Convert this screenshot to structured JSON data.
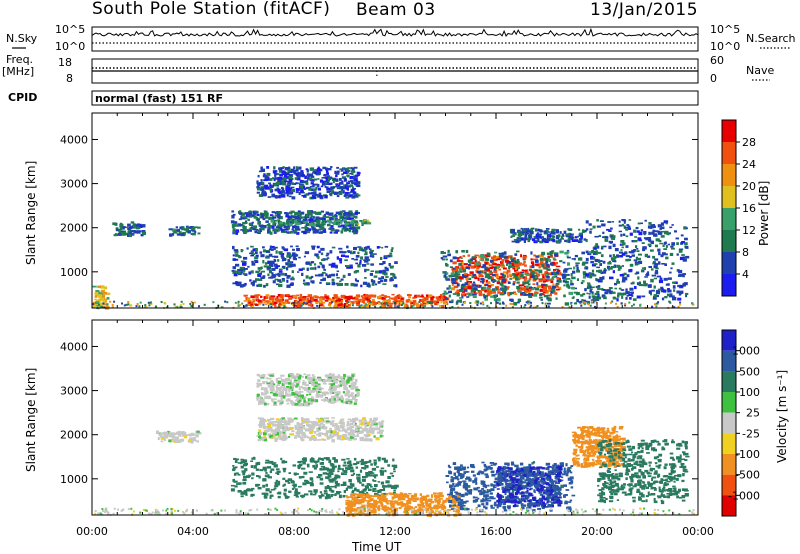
{
  "header": {
    "station": "South Pole Station (fitACF)",
    "beam": "Beam 03",
    "date": "13/Jan/2015"
  },
  "top_panels": {
    "nsky_label": "N.Sky",
    "nsky_ticks": [
      "10^5",
      "10^0"
    ],
    "nsearch_label": "N.Search",
    "nsearch_ticks": [
      "10^5",
      "10^0"
    ],
    "freq_label": "Freq.",
    "freq_unit": "[MHz]",
    "freq_ticks": [
      "18",
      "8"
    ],
    "nave_label": "Nave",
    "nave_ticks": [
      "60",
      "0"
    ],
    "cpid_label": "CPID",
    "cpid_value": "normal (fast) 151 RF"
  },
  "colors": {
    "power": [
      "#1c1cf0",
      "#2040b0",
      "#207a50",
      "#3aa06a",
      "#e0c020",
      "#f09010",
      "#f05010",
      "#e80000"
    ],
    "velocity": [
      "#2020c8",
      "#2c5aa0",
      "#2a7a60",
      "#40c040",
      "#c8c8c8",
      "#f0d020",
      "#f09020",
      "#f05010",
      "#e00000"
    ]
  },
  "chart_data": [
    {
      "type": "heatmap",
      "panel": "power",
      "ylabel": "Slant Range [km]",
      "xlabel": "Time UT",
      "x_ticks": [
        "00:00",
        "04:00",
        "08:00",
        "12:00",
        "16:00",
        "20:00",
        "00:00"
      ],
      "y_ticks": [
        "1000",
        "2000",
        "3000",
        "4000"
      ],
      "ylim": [
        180,
        4600
      ],
      "xlim": [
        0,
        24
      ],
      "colorbar": {
        "label": "Power [dB]",
        "ticks": [
          "4",
          "8",
          "12",
          "16",
          "20",
          "24",
          "28"
        ],
        "range": [
          0,
          32
        ]
      },
      "regions": [
        {
          "t0": 0.8,
          "t1": 2.0,
          "r0": 1850,
          "r1": 2150,
          "value": 7
        },
        {
          "t0": 3.0,
          "t1": 4.2,
          "r0": 1850,
          "r1": 2050,
          "value": 9
        },
        {
          "t0": 5.5,
          "t1": 10.5,
          "r0": 1900,
          "r1": 2400,
          "value": 7
        },
        {
          "t0": 7.0,
          "t1": 11.0,
          "r0": 2100,
          "r1": 2200,
          "value": 13
        },
        {
          "t0": 6.5,
          "t1": 10.5,
          "r0": 2700,
          "r1": 3400,
          "value": 6
        },
        {
          "t0": 5.5,
          "t1": 12.0,
          "r0": 700,
          "r1": 1600,
          "value": 7
        },
        {
          "t0": 0.0,
          "t1": 0.6,
          "r0": 200,
          "r1": 700,
          "value": 18
        },
        {
          "t0": 6.0,
          "t1": 14.0,
          "r0": 250,
          "r1": 500,
          "value": 26
        },
        {
          "t0": 14.2,
          "t1": 18.5,
          "r0": 500,
          "r1": 1400,
          "value": 27
        },
        {
          "t0": 13.8,
          "t1": 20.0,
          "r0": 300,
          "r1": 1500,
          "value": 9
        },
        {
          "t0": 19.5,
          "t1": 23.5,
          "r0": 400,
          "r1": 2200,
          "value": 7
        },
        {
          "t0": 16.5,
          "t1": 19.5,
          "r0": 1700,
          "r1": 2000,
          "value": 7
        }
      ]
    },
    {
      "type": "heatmap",
      "panel": "velocity",
      "ylabel": "Slant Range [km]",
      "xlabel": "Time UT",
      "x_ticks": [
        "00:00",
        "04:00",
        "08:00",
        "12:00",
        "16:00",
        "20:00",
        "00:00"
      ],
      "y_ticks": [
        "1000",
        "2000",
        "3000",
        "4000"
      ],
      "ylim": [
        180,
        4600
      ],
      "xlim": [
        0,
        24
      ],
      "colorbar": {
        "label": "Velocity [m s⁻¹]",
        "ticks": [
          "1000",
          "500",
          "100",
          "25",
          "-25",
          "-100",
          "-500",
          "-1000"
        ],
        "range": [
          -1000,
          1000
        ]
      },
      "regions": [
        {
          "t0": 2.5,
          "t1": 4.2,
          "r0": 1850,
          "r1": 2100,
          "value": 0
        },
        {
          "t0": 6.5,
          "t1": 11.5,
          "r0": 1900,
          "r1": 2400,
          "value": 0
        },
        {
          "t0": 6.5,
          "t1": 10.5,
          "r0": 2700,
          "r1": 3400,
          "value": 10
        },
        {
          "t0": 5.5,
          "t1": 12.0,
          "r0": 600,
          "r1": 1500,
          "value": 150
        },
        {
          "t0": 10.0,
          "t1": 14.5,
          "r0": 200,
          "r1": 700,
          "value": -200
        },
        {
          "t0": 14.0,
          "t1": 19.0,
          "r0": 300,
          "r1": 1400,
          "value": 700
        },
        {
          "t0": 16.0,
          "t1": 18.5,
          "r0": 400,
          "r1": 1300,
          "value": 1000
        },
        {
          "t0": 19.0,
          "t1": 21.0,
          "r0": 1300,
          "r1": 2200,
          "value": -300
        },
        {
          "t0": 20.0,
          "t1": 23.5,
          "r0": 500,
          "r1": 1900,
          "value": 200
        }
      ]
    }
  ]
}
